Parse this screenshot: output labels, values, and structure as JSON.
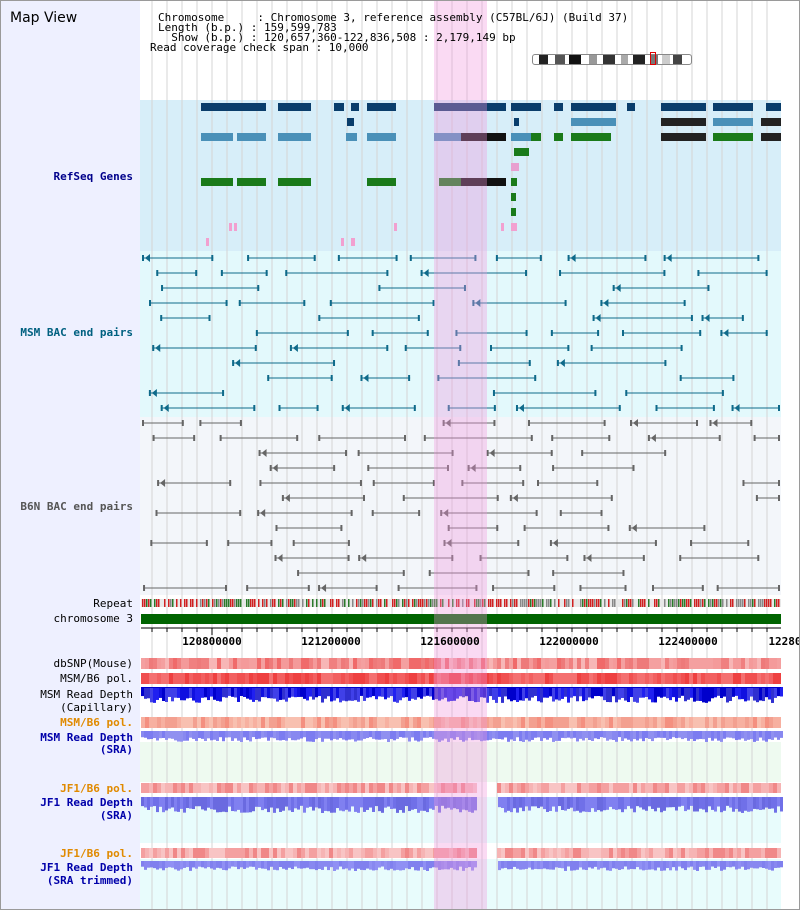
{
  "header": {
    "view_title": "Map View",
    "chromosome_line": "Chromosome     : Chromosome 3, reference assembly (C57BL/6J) (Build 37)",
    "length_line": "Length (b.p.) : 159,599,783",
    "show_line": "  Show (b.p.) : 120,657,360-122,836,508 : 2,179,149 bp",
    "coverage_line": "Read coverage check span : 10,000"
  },
  "tracks": {
    "refseq": "RefSeq Genes",
    "msm_bac": "MSM BAC end pairs",
    "b6n_bac": "B6N BAC end pairs",
    "repeat": "Repeat",
    "chromosome": "chromosome 3",
    "dbsnp": "dbSNP(Mouse)",
    "msm_b6_pol": "MSM/B6 pol.",
    "msm_read_depth_cap_1": "MSM Read Depth",
    "msm_read_depth_cap_2": "(Capillary)",
    "msm_b6_pol_2": "MSM/B6 pol.",
    "msm_read_depth_sra_1": "MSM Read Depth",
    "msm_read_depth_sra_2": "(SRA)",
    "jf1_b6_pol": "JF1/B6 pol.",
    "jf1_read_depth_1": "JF1 Read Depth",
    "jf1_read_depth_2": "(SRA)",
    "jf1_b6_pol_2": "JF1/B6 pol.",
    "jf1_read_depth_trim_1": "JF1 Read Depth",
    "jf1_read_depth_trim_2": "(SRA trimmed)"
  },
  "axis": {
    "ticks": [
      "120800000",
      "121200000",
      "121600000",
      "122000000",
      "122400000",
      "12280"
    ]
  },
  "colors": {
    "refseq_label": "#00008b",
    "msm_label": "#006080",
    "b6n_label": "#555555",
    "pol_orange": "#e08a00",
    "depth_blue": "#0000aa",
    "chromosome_bar": "#006400",
    "highlight": "#f5c6ea"
  }
}
